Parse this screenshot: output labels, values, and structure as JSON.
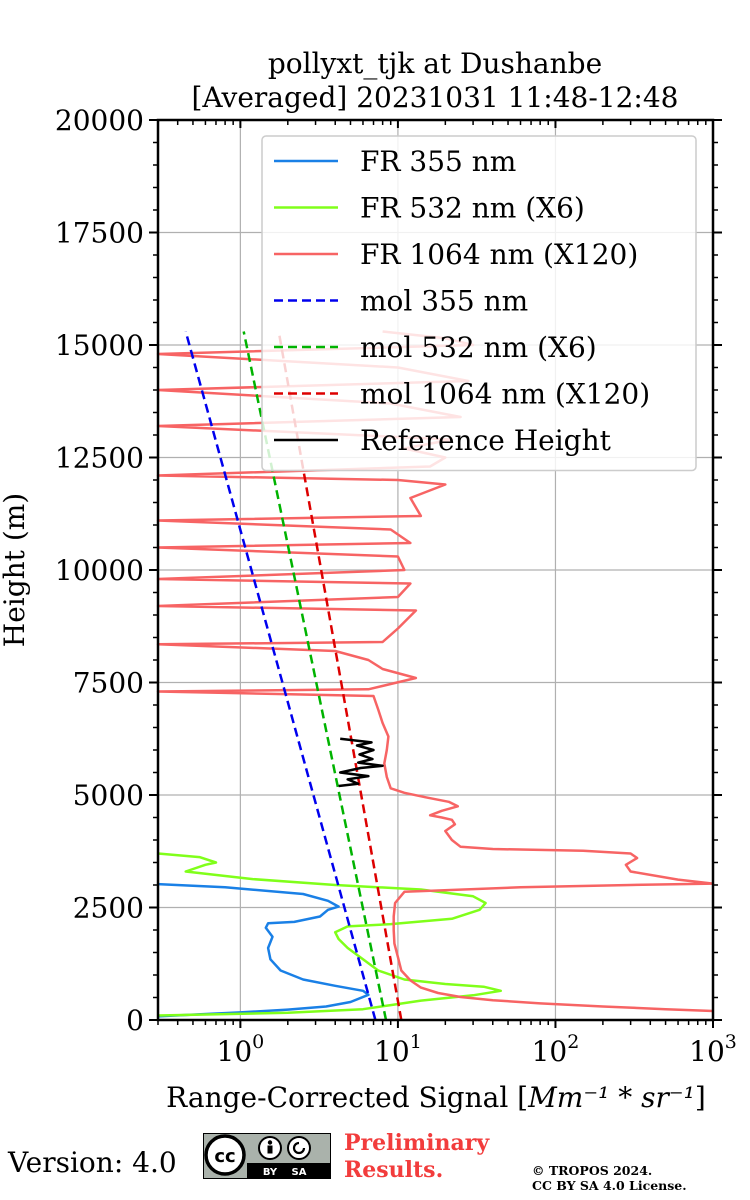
{
  "chart_data": {
    "type": "line",
    "title_line1": "pollyxt_tjk at Dushanbe",
    "title_line2": "[Averaged] 20231031 11:48-12:48",
    "xlabel": "Range-Corrected Signal [Mm^-1*sr^-1]",
    "xlabel_main": "Range-Corrected Signal [",
    "xlabel_math": "Mm⁻¹ * sr⁻¹",
    "xlabel_close": "]",
    "ylabel": "Height (m)",
    "xscale": "log",
    "xlim": [
      0.3,
      1000
    ],
    "ylim": [
      0,
      20000
    ],
    "xticks": [
      1,
      10,
      100,
      1000
    ],
    "xtick_labels": [
      {
        "base": "10",
        "exp": "0"
      },
      {
        "base": "10",
        "exp": "1"
      },
      {
        "base": "10",
        "exp": "2"
      },
      {
        "base": "10",
        "exp": "3"
      }
    ],
    "yticks": [
      0,
      2500,
      5000,
      7500,
      10000,
      12500,
      15000,
      17500,
      20000
    ],
    "ytick_labels": [
      "0",
      "2500",
      "5000",
      "7500",
      "10000",
      "12500",
      "15000",
      "17500",
      "20000"
    ],
    "grid": true,
    "legend_position": "top-right",
    "legend": [
      {
        "label": "FR 355 nm",
        "color": "#1a80e6",
        "style": "solid"
      },
      {
        "label": "FR 532 nm (X6)",
        "color": "#80ff1a",
        "style": "solid"
      },
      {
        "label": "FR 1064 nm (X120)",
        "color": "#f76464",
        "style": "solid"
      },
      {
        "label": "mol 355 nm",
        "color": "#0000ee",
        "style": "dashed"
      },
      {
        "label": "mol 532 nm (X6)",
        "color": "#00b300",
        "style": "dashed"
      },
      {
        "label": "mol 1064 nm (X120)",
        "color": "#dd0000",
        "style": "dashed"
      },
      {
        "label": "Reference Height",
        "color": "#000000",
        "style": "solid"
      }
    ],
    "series": [
      {
        "name": "FR 355 nm",
        "color": "#1a80e6",
        "style": "solid",
        "points": [
          [
            0.3,
            80
          ],
          [
            0.5,
            120
          ],
          [
            1,
            170
          ],
          [
            2,
            230
          ],
          [
            3.5,
            300
          ],
          [
            5,
            400
          ],
          [
            6.5,
            560
          ],
          [
            6,
            650
          ],
          [
            4,
            760
          ],
          [
            2.5,
            900
          ],
          [
            1.8,
            1100
          ],
          [
            1.55,
            1350
          ],
          [
            1.5,
            1600
          ],
          [
            1.6,
            1850
          ],
          [
            1.45,
            2050
          ],
          [
            1.5,
            2150
          ],
          [
            2.2,
            2180
          ],
          [
            3.2,
            2300
          ],
          [
            3.6,
            2450
          ],
          [
            4.2,
            2520
          ],
          [
            3.6,
            2650
          ],
          [
            2.5,
            2800
          ],
          [
            0.8,
            2950
          ],
          [
            0.3,
            3020
          ]
        ]
      },
      {
        "name": "FR 532 nm (X6)",
        "color": "#80ff1a",
        "style": "solid",
        "points": [
          [
            0.3,
            100
          ],
          [
            2,
            160
          ],
          [
            6,
            240
          ],
          [
            9,
            330
          ],
          [
            14,
            430
          ],
          [
            30,
            550
          ],
          [
            45,
            650
          ],
          [
            35,
            740
          ],
          [
            20,
            800
          ],
          [
            11,
            900
          ],
          [
            7.5,
            1100
          ],
          [
            6,
            1350
          ],
          [
            4.8,
            1600
          ],
          [
            4.2,
            1800
          ],
          [
            4,
            1950
          ],
          [
            4.8,
            2080
          ],
          [
            9,
            2130
          ],
          [
            22,
            2250
          ],
          [
            33,
            2450
          ],
          [
            36,
            2600
          ],
          [
            30,
            2750
          ],
          [
            14,
            2900
          ],
          [
            4,
            3000
          ],
          [
            1.2,
            3130
          ],
          [
            0.45,
            3300
          ],
          [
            0.6,
            3450
          ],
          [
            0.7,
            3500
          ],
          [
            0.55,
            3620
          ],
          [
            0.3,
            3700
          ]
        ]
      },
      {
        "name": "FR 1064 nm (X120)",
        "color": "#f76464",
        "style": "solid",
        "points": [
          [
            1000,
            200
          ],
          [
            500,
            240
          ],
          [
            200,
            300
          ],
          [
            80,
            370
          ],
          [
            40,
            440
          ],
          [
            25,
            510
          ],
          [
            18,
            600
          ],
          [
            14,
            720
          ],
          [
            12,
            880
          ],
          [
            10.5,
            1100
          ],
          [
            10,
            1400
          ],
          [
            9.5,
            1700
          ],
          [
            9.4,
            2000
          ],
          [
            9.4,
            2300
          ],
          [
            9.6,
            2600
          ],
          [
            11,
            2850
          ],
          [
            60,
            2950
          ],
          [
            300,
            3000
          ],
          [
            1000,
            3030
          ],
          [
            600,
            3120
          ],
          [
            300,
            3300
          ],
          [
            280,
            3450
          ],
          [
            330,
            3600
          ],
          [
            300,
            3700
          ],
          [
            150,
            3760
          ],
          [
            40,
            3800
          ],
          [
            25,
            3850
          ],
          [
            22,
            4000
          ],
          [
            20,
            4200
          ],
          [
            23,
            4350
          ],
          [
            22,
            4450
          ],
          [
            19,
            4500
          ],
          [
            16,
            4550
          ],
          [
            19,
            4650
          ],
          [
            24,
            4750
          ],
          [
            21,
            4850
          ],
          [
            15,
            4950
          ],
          [
            11,
            5050
          ],
          [
            9,
            5150
          ],
          [
            8.5,
            5400
          ],
          [
            8.2,
            5700
          ],
          [
            8.5,
            6000
          ],
          [
            8.7,
            6300
          ],
          [
            8,
            6600
          ],
          [
            7.5,
            6900
          ],
          [
            7,
            7200
          ],
          [
            0.3,
            7300
          ],
          [
            6.5,
            7350
          ],
          [
            13,
            7600
          ],
          [
            8,
            7800
          ],
          [
            6.5,
            8000
          ],
          [
            4,
            8200
          ],
          [
            0.3,
            8350
          ],
          [
            8,
            8400
          ],
          [
            10,
            8700
          ],
          [
            13,
            9100
          ],
          [
            0.3,
            9200
          ],
          [
            10,
            9400
          ],
          [
            12,
            9700
          ],
          [
            0.3,
            9800
          ],
          [
            11,
            10000
          ],
          [
            10,
            10300
          ],
          [
            0.3,
            10500
          ],
          [
            12,
            10600
          ],
          [
            9,
            10900
          ],
          [
            0.3,
            11100
          ],
          [
            14,
            11200
          ],
          [
            12,
            11600
          ],
          [
            20,
            11900
          ],
          [
            10,
            12000
          ],
          [
            0.3,
            12100
          ],
          [
            16,
            12300
          ],
          [
            20,
            12500
          ],
          [
            11,
            12700
          ],
          [
            22,
            12900
          ],
          [
            0.3,
            13200
          ],
          [
            25,
            13400
          ],
          [
            9,
            13700
          ],
          [
            0.3,
            14000
          ],
          [
            28,
            14200
          ],
          [
            10,
            14500
          ],
          [
            0.3,
            14800
          ],
          [
            30,
            15000
          ],
          [
            20,
            15150
          ],
          [
            8,
            15300
          ]
        ]
      },
      {
        "name": "mol 355 nm",
        "color": "#0000ee",
        "style": "dashed",
        "points": [
          [
            7.2,
            0
          ],
          [
            0.45,
            15300
          ]
        ]
      },
      {
        "name": "mol 532 nm (X6)",
        "color": "#00b300",
        "style": "dashed",
        "points": [
          [
            8.4,
            0
          ],
          [
            1.05,
            15300
          ]
        ]
      },
      {
        "name": "mol 1064 nm (X120)",
        "color": "#dd0000",
        "style": "dashed",
        "points": [
          [
            10.5,
            0
          ],
          [
            1.75,
            15300
          ]
        ]
      },
      {
        "name": "Reference Height",
        "color": "#000000",
        "style": "solid",
        "points": [
          [
            4.2,
            5200
          ],
          [
            5.6,
            5250
          ],
          [
            4.8,
            5350
          ],
          [
            6.5,
            5420
          ],
          [
            4.3,
            5500
          ],
          [
            5.8,
            5600
          ],
          [
            8,
            5650
          ],
          [
            5.6,
            5720
          ],
          [
            6.9,
            5800
          ],
          [
            5.7,
            5900
          ],
          [
            7,
            6000
          ],
          [
            5.5,
            6100
          ],
          [
            6.8,
            6170
          ],
          [
            4.3,
            6250
          ]
        ]
      }
    ]
  },
  "footer": {
    "version": "Version: 4.0",
    "cc_label": "cc",
    "by_label": "BY",
    "sa_label": "SA",
    "preliminary_line1": "Preliminary",
    "preliminary_line2": "Results.",
    "copyright_line1": "© TROPOS 2024.",
    "copyright_line2": "CC BY SA 4.0 License."
  }
}
